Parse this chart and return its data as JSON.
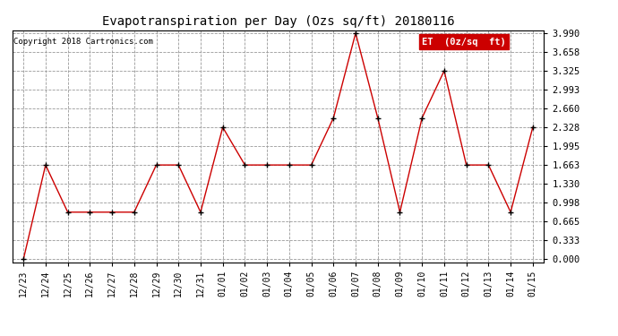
{
  "title": "Evapotranspiration per Day (Ozs sq/ft) 20180116",
  "copyright": "Copyright 2018 Cartronics.com",
  "legend_label": "ET  (0z/sq  ft)",
  "x_labels": [
    "12/23",
    "12/24",
    "12/25",
    "12/26",
    "12/27",
    "12/28",
    "12/29",
    "12/30",
    "12/31",
    "01/01",
    "01/02",
    "01/03",
    "01/04",
    "01/05",
    "01/06",
    "01/07",
    "01/08",
    "01/09",
    "01/10",
    "01/11",
    "01/12",
    "01/13",
    "01/14",
    "01/15"
  ],
  "y_values": [
    0.0,
    1.663,
    0.831,
    0.831,
    0.831,
    0.831,
    1.663,
    1.663,
    0.831,
    2.328,
    1.663,
    1.663,
    1.663,
    1.663,
    2.494,
    3.99,
    2.494,
    0.831,
    2.494,
    3.325,
    1.663,
    1.663,
    0.831,
    2.328
  ],
  "y_ticks": [
    0.0,
    0.333,
    0.665,
    0.998,
    1.33,
    1.663,
    1.995,
    2.328,
    2.66,
    2.993,
    3.325,
    3.658,
    3.99
  ],
  "line_color": "#cc0000",
  "marker_color": "#000000",
  "legend_bg": "#cc0000",
  "legend_text_color": "#ffffff",
  "background_color": "#ffffff",
  "grid_color": "#999999",
  "title_color": "#000000",
  "ylim": [
    0.0,
    3.99
  ],
  "figsize": [
    6.9,
    3.75
  ],
  "dpi": 100
}
